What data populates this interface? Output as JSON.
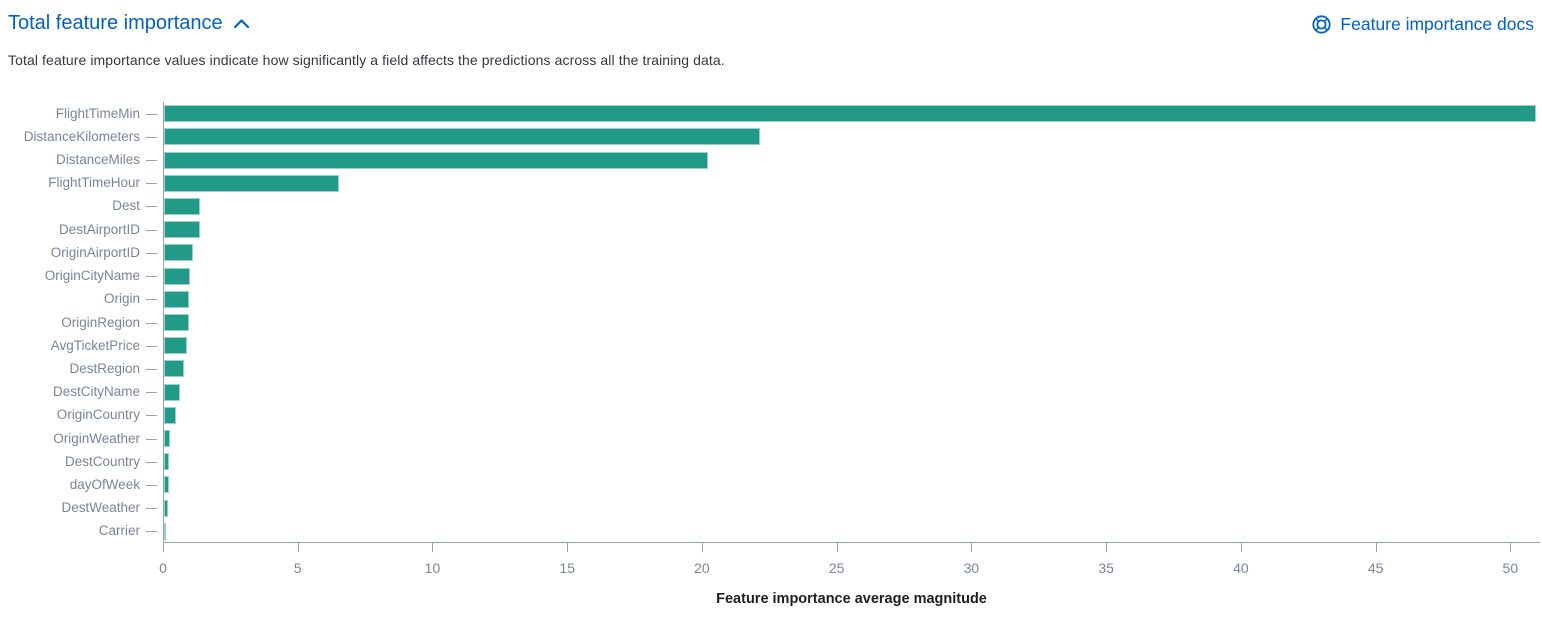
{
  "header": {
    "title": "Total feature importance",
    "collapse_icon": "chevron-up",
    "docs_link_label": "Feature importance docs",
    "docs_icon": "life-ring"
  },
  "description": "Total feature importance values indicate how significantly a field affects the predictions across all the training data.",
  "colors": {
    "link_blue": "#0061C6",
    "bar_teal": "#219A88",
    "axis_label_gray": "#7A8499",
    "axis_line_gray": "#98A2B3",
    "body_text": "#343741",
    "axis_title_dark": "#1D1E24"
  },
  "chart_data": {
    "type": "bar",
    "orientation": "horizontal",
    "title": "",
    "xlabel": "Feature importance average magnitude",
    "ylabel": "",
    "xlim": [
      0,
      51.1
    ],
    "xticks": [
      0,
      5,
      10,
      15,
      20,
      25,
      30,
      35,
      40,
      45,
      50
    ],
    "grid": false,
    "legend": false,
    "categories": [
      "FlightTimeMin",
      "DistanceKilometers",
      "DistanceMiles",
      "FlightTimeHour",
      "Dest",
      "DestAirportID",
      "OriginAirportID",
      "OriginCityName",
      "Origin",
      "OriginRegion",
      "AvgTicketPrice",
      "DestRegion",
      "DestCityName",
      "OriginCountry",
      "OriginWeather",
      "DestCountry",
      "dayOfWeek",
      "DestWeather",
      "Carrier"
    ],
    "values": [
      50.9,
      22.1,
      20.2,
      6.5,
      1.35,
      1.32,
      1.08,
      0.97,
      0.93,
      0.91,
      0.86,
      0.74,
      0.61,
      0.44,
      0.21,
      0.19,
      0.17,
      0.14,
      0.06
    ]
  }
}
